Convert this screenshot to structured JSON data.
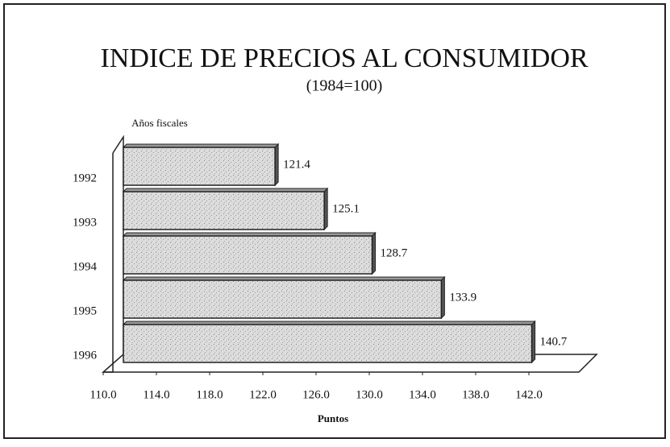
{
  "chart_data": {
    "type": "bar",
    "orientation": "horizontal",
    "title": "INDICE DE PRECIOS AL CONSUMIDOR",
    "subtitle": "(1984=100)",
    "y_label": "Años fiscales",
    "x_label": "Puntos",
    "categories": [
      "1992",
      "1993",
      "1994",
      "1995",
      "1996"
    ],
    "values": [
      121.4,
      125.1,
      128.7,
      133.9,
      140.7
    ],
    "color": "#d4d4d4",
    "xlim": [
      110,
      142
    ],
    "xticks": [
      {
        "value": 110,
        "label": "110.0"
      },
      {
        "value": 114,
        "label": "114.0"
      },
      {
        "value": 118,
        "label": "118.0"
      },
      {
        "value": 122,
        "label": "122.0"
      },
      {
        "value": 126,
        "label": "126.0"
      },
      {
        "value": 130,
        "label": "130.0"
      },
      {
        "value": 134,
        "label": "134.0"
      },
      {
        "value": 138,
        "label": "138.0"
      },
      {
        "value": 142,
        "label": "142.0"
      }
    ]
  }
}
